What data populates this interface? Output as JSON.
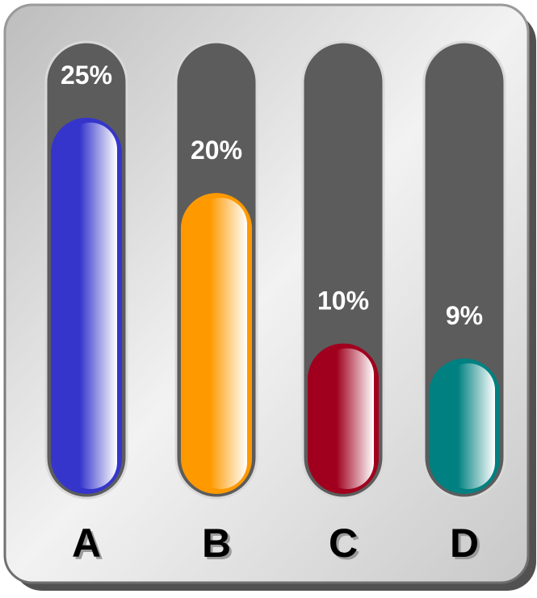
{
  "chart_data": {
    "type": "bar",
    "title": "",
    "xlabel": "",
    "ylabel": "",
    "ylim": [
      0,
      28
    ],
    "grid": false,
    "legend": "none",
    "categories": [
      "A",
      "B",
      "C",
      "D"
    ],
    "values": [
      25,
      20,
      10,
      9
    ],
    "value_labels": [
      "25%",
      "20%",
      "10%",
      "9%"
    ],
    "colors": [
      "#3535CC",
      "#FF9900",
      "#A0001E",
      "#008080"
    ]
  },
  "style": {
    "panel_color": "#E6E6E6",
    "track_color": "#5C5C5C",
    "label_color": "#FFFFFF",
    "category_color": "#000000"
  }
}
